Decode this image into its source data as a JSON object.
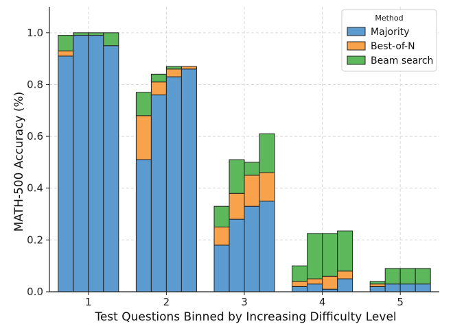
{
  "chart_data": {
    "type": "bar",
    "stacked": true,
    "xlabel": "Test Questions Binned by Increasing Difficulty Level",
    "ylabel": "MATH-500 Accuracy (%)",
    "ylim": [
      0,
      1.1
    ],
    "yticks": [
      "0.0",
      "0.2",
      "0.4",
      "0.6",
      "0.8",
      "1.0"
    ],
    "grid": true,
    "legend_position": "top-right",
    "legend_title": "Method",
    "categories": [
      "1",
      "2",
      "3",
      "4",
      "5"
    ],
    "bars_per_category": 4,
    "series": [
      {
        "name": "Majority",
        "color": "#5b9bd0",
        "values": [
          [
            0.91,
            0.99,
            0.99,
            0.95
          ],
          [
            0.51,
            0.76,
            0.83,
            0.86
          ],
          [
            0.18,
            0.28,
            0.33,
            0.35
          ],
          [
            0.02,
            0.03,
            0.01,
            0.05
          ],
          [
            0.02,
            0.03,
            0.03,
            0.03
          ]
        ]
      },
      {
        "name": "Best-of-N",
        "color": "#f9a24c",
        "values": [
          [
            0.02,
            0.0,
            0.0,
            0.0
          ],
          [
            0.17,
            0.05,
            0.03,
            0.01
          ],
          [
            0.07,
            0.1,
            0.12,
            0.11
          ],
          [
            0.02,
            0.02,
            0.05,
            0.03
          ],
          [
            0.01,
            0.0,
            0.0,
            0.0
          ]
        ]
      },
      {
        "name": "Beam search",
        "color": "#5db85c",
        "values": [
          [
            0.06,
            0.01,
            0.01,
            0.05
          ],
          [
            0.09,
            0.03,
            0.01,
            0.0
          ],
          [
            0.08,
            0.13,
            0.05,
            0.15
          ],
          [
            0.06,
            0.175,
            0.165,
            0.155
          ],
          [
            0.01,
            0.06,
            0.06,
            0.06
          ]
        ]
      }
    ]
  }
}
